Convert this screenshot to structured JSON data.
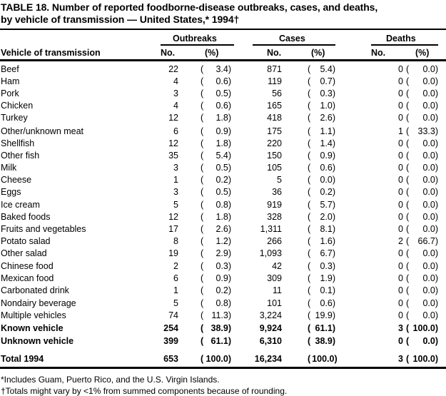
{
  "title": {
    "line1": "TABLE 18. Number of reported foodborne-disease  outbreaks, cases, and deaths,",
    "line2": "by vehicle of transmission  — United States,*  1994†"
  },
  "headers": {
    "vehicle": "Vehicle of transmission",
    "outbreaks": "Outbreaks",
    "cases": "Cases",
    "deaths": "Deaths",
    "no": "No.",
    "pct": "(%)"
  },
  "rows": [
    {
      "vehicle": "Beef",
      "outbreaks": "22",
      "outbreaks_pct": "3.4",
      "cases": "871",
      "cases_pct": "5.4",
      "deaths": "0",
      "deaths_pct": "0.0"
    },
    {
      "vehicle": "Ham",
      "outbreaks": "4",
      "outbreaks_pct": "0.6",
      "cases": "119",
      "cases_pct": "0.7",
      "deaths": "0",
      "deaths_pct": "0.0"
    },
    {
      "vehicle": "Pork",
      "outbreaks": "3",
      "outbreaks_pct": "0.5",
      "cases": "56",
      "cases_pct": "0.3",
      "deaths": "0",
      "deaths_pct": "0.0"
    },
    {
      "vehicle": "Chicken",
      "outbreaks": "4",
      "outbreaks_pct": "0.6",
      "cases": "165",
      "cases_pct": "1.0",
      "deaths": "0",
      "deaths_pct": "0.0"
    },
    {
      "vehicle": "Turkey",
      "outbreaks": "12",
      "outbreaks_pct": "1.8",
      "cases": "418",
      "cases_pct": "2.6",
      "deaths": "0",
      "deaths_pct": "0.0"
    },
    {
      "vehicle": "Other/unknown meat",
      "outbreaks": "6",
      "outbreaks_pct": "0.9",
      "cases": "175",
      "cases_pct": "1.1",
      "deaths": "1",
      "deaths_pct": "33.3"
    },
    {
      "vehicle": "Shellfish",
      "outbreaks": "12",
      "outbreaks_pct": "1.8",
      "cases": "220",
      "cases_pct": "1.4",
      "deaths": "0",
      "deaths_pct": "0.0"
    },
    {
      "vehicle": "Other fish",
      "outbreaks": "35",
      "outbreaks_pct": "5.4",
      "cases": "150",
      "cases_pct": "0.9",
      "deaths": "0",
      "deaths_pct": "0.0"
    },
    {
      "vehicle": "Milk",
      "outbreaks": "3",
      "outbreaks_pct": "0.5",
      "cases": "105",
      "cases_pct": "0.6",
      "deaths": "0",
      "deaths_pct": "0.0"
    },
    {
      "vehicle": "Cheese",
      "outbreaks": "1",
      "outbreaks_pct": "0.2",
      "cases": "5",
      "cases_pct": "0.0",
      "deaths": "0",
      "deaths_pct": "0.0"
    },
    {
      "vehicle": "Eggs",
      "outbreaks": "3",
      "outbreaks_pct": "0.5",
      "cases": "36",
      "cases_pct": "0.2",
      "deaths": "0",
      "deaths_pct": "0.0"
    },
    {
      "vehicle": "Ice cream",
      "outbreaks": "5",
      "outbreaks_pct": "0.8",
      "cases": "919",
      "cases_pct": "5.7",
      "deaths": "0",
      "deaths_pct": "0.0"
    },
    {
      "vehicle": "Baked foods",
      "outbreaks": "12",
      "outbreaks_pct": "1.8",
      "cases": "328",
      "cases_pct": "2.0",
      "deaths": "0",
      "deaths_pct": "0.0"
    },
    {
      "vehicle": "Fruits and vegetables",
      "outbreaks": "17",
      "outbreaks_pct": "2.6",
      "cases": "1,311",
      "cases_pct": "8.1",
      "deaths": "0",
      "deaths_pct": "0.0"
    },
    {
      "vehicle": "Potato salad",
      "outbreaks": "8",
      "outbreaks_pct": "1.2",
      "cases": "266",
      "cases_pct": "1.6",
      "deaths": "2",
      "deaths_pct": "66.7"
    },
    {
      "vehicle": "Other salad",
      "outbreaks": "19",
      "outbreaks_pct": "2.9",
      "cases": "1,093",
      "cases_pct": "6.7",
      "deaths": "0",
      "deaths_pct": "0.0"
    },
    {
      "vehicle": "Chinese food",
      "outbreaks": "2",
      "outbreaks_pct": "0.3",
      "cases": "42",
      "cases_pct": "0.3",
      "deaths": "0",
      "deaths_pct": "0.0"
    },
    {
      "vehicle": "Mexican food",
      "outbreaks": "6",
      "outbreaks_pct": "0.9",
      "cases": "309",
      "cases_pct": "1.9",
      "deaths": "0",
      "deaths_pct": "0.0"
    },
    {
      "vehicle": "Carbonated drink",
      "outbreaks": "1",
      "outbreaks_pct": "0.2",
      "cases": "11",
      "cases_pct": "0.1",
      "deaths": "0",
      "deaths_pct": "0.0"
    },
    {
      "vehicle": "Nondairy beverage",
      "outbreaks": "5",
      "outbreaks_pct": "0.8",
      "cases": "101",
      "cases_pct": "0.6",
      "deaths": "0",
      "deaths_pct": "0.0"
    },
    {
      "vehicle": "Multiple vehicles",
      "outbreaks": "74",
      "outbreaks_pct": "11.3",
      "cases": "3,224",
      "cases_pct": "19.9",
      "deaths": "0",
      "deaths_pct": "0.0"
    },
    {
      "vehicle": "Known vehicle",
      "outbreaks": "254",
      "outbreaks_pct": "38.9",
      "cases": "9,924",
      "cases_pct": "61.1",
      "deaths": "3",
      "deaths_pct": "100.0",
      "bold": true
    },
    {
      "vehicle": "Unknown vehicle",
      "outbreaks": "399",
      "outbreaks_pct": "61.1",
      "cases": "6,310",
      "cases_pct": "38.9",
      "deaths": "0",
      "deaths_pct": "0.0",
      "bold": true
    }
  ],
  "total": {
    "vehicle": "Total 1994",
    "outbreaks": "653",
    "outbreaks_pct": "100.0",
    "cases": "16,234",
    "cases_pct": "100.0",
    "deaths": "3",
    "deaths_pct": "100.0"
  },
  "footnotes": [
    "*Includes Guam, Puerto Rico, and the U.S. Virgin Islands.",
    "†Totals might vary by <1% from summed components because of rounding."
  ]
}
